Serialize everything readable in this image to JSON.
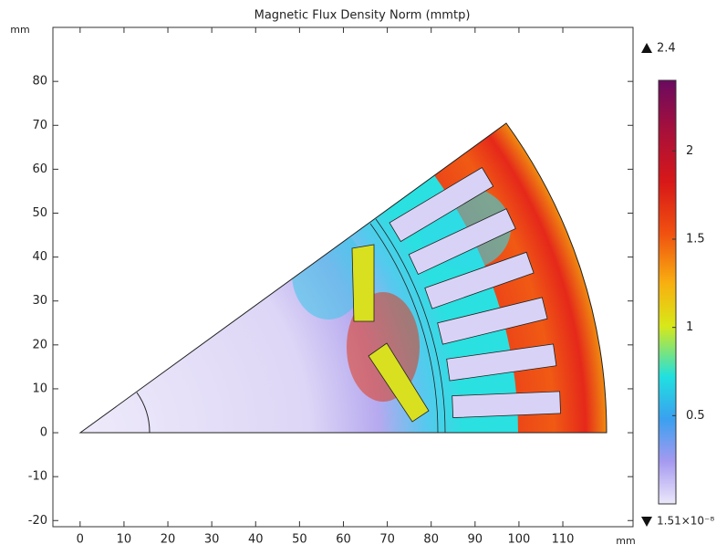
{
  "chart_data": {
    "type": "field",
    "title": "Magnetic Flux Density Norm (mmtp)",
    "x_label": "mm",
    "y_label": "mm",
    "xlim": [
      -6.2,
      126
    ],
    "ylim": [
      -21.4,
      92.3
    ],
    "xticks": [
      0,
      10,
      20,
      30,
      40,
      50,
      60,
      70,
      80,
      90,
      100,
      110
    ],
    "yticks": [
      -20,
      -10,
      0,
      10,
      20,
      30,
      40,
      50,
      60,
      70,
      80
    ],
    "colorbar": {
      "max": 2.4,
      "min": {
        "value": 1.51e-08,
        "label": "1.51×10⁻⁸"
      },
      "ticks": [
        0.5,
        1,
        1.5,
        2
      ]
    }
  }
}
